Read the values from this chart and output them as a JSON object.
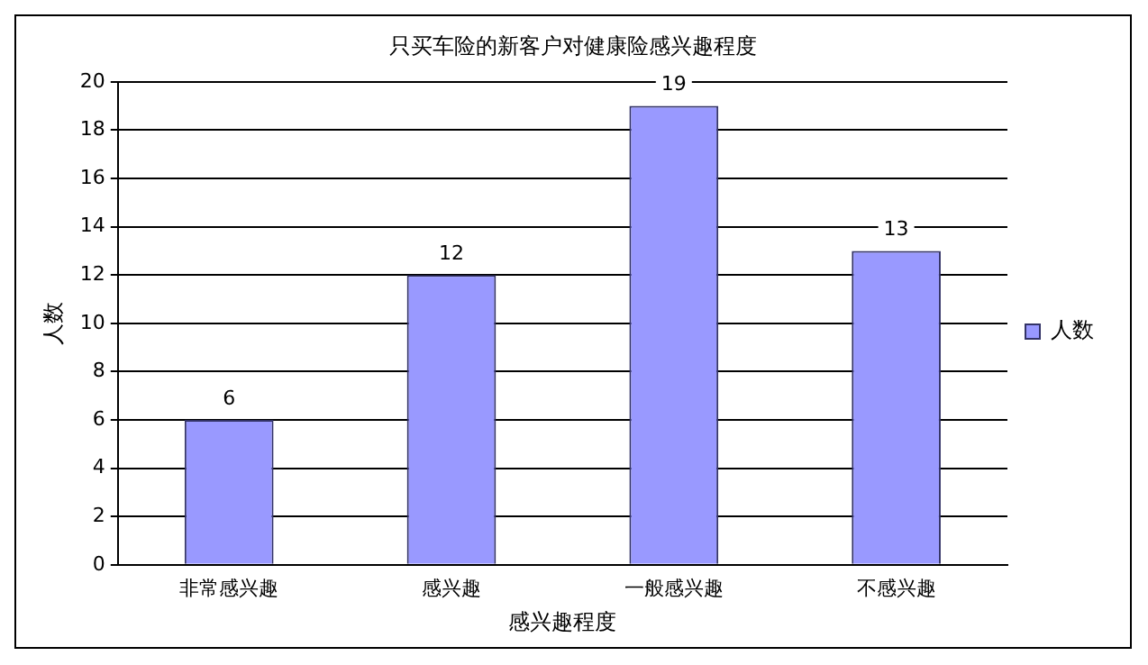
{
  "chart_data": {
    "type": "bar",
    "title": "只买车险的新客户对健康险感兴趣程度",
    "xlabel": "感兴趣程度",
    "ylabel": "人数",
    "categories": [
      "非常感兴趣",
      "感兴趣",
      "一般感兴趣",
      "不感兴趣"
    ],
    "series": [
      {
        "name": "人数",
        "color": "#9999ff",
        "values": [
          6,
          12,
          19,
          13
        ]
      }
    ],
    "ylim": [
      0,
      20
    ],
    "yticks": [
      0,
      2,
      4,
      6,
      8,
      10,
      12,
      14,
      16,
      18,
      20
    ],
    "grid": "y",
    "legend": "right",
    "data_labels": true
  }
}
